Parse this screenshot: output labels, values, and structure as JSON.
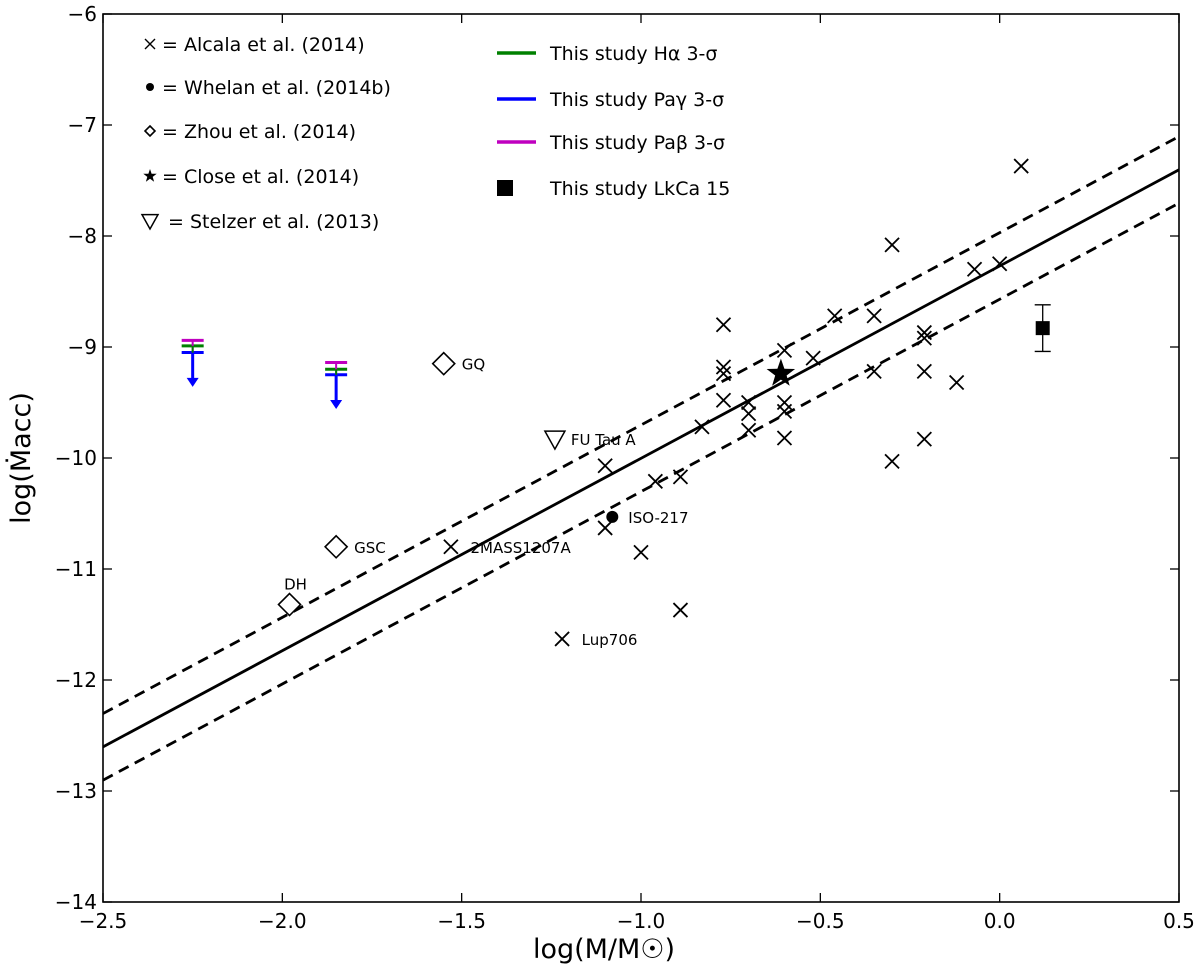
{
  "chart_data": {
    "type": "scatter",
    "xlabel": "log(M/M☉)",
    "ylabel": "log(Ṁacc)",
    "xlim": [
      -2.5,
      0.5
    ],
    "ylim": [
      -14,
      -6
    ],
    "xticks": [
      -2.5,
      -2.0,
      -1.5,
      -1.0,
      -0.5,
      0.0,
      0.5
    ],
    "xtick_labels": [
      "−2.5",
      "−2.0",
      "−1.5",
      "−1.0",
      "−0.5",
      "0.0",
      "0.5"
    ],
    "yticks": [
      -14,
      -13,
      -12,
      -11,
      -10,
      -9,
      -8,
      -7,
      -6
    ],
    "ytick_labels": [
      "−14",
      "−13",
      "−12",
      "−11",
      "−10",
      "−9",
      "−8",
      "−7",
      "−6"
    ],
    "grid": false,
    "legend_left": [
      {
        "marker": "x",
        "label": "= Alcala et al. (2014)"
      },
      {
        "marker": "circle",
        "label": "= Whelan et al. (2014b)"
      },
      {
        "marker": "diamond",
        "label": "= Zhou et al. (2014)"
      },
      {
        "marker": "star",
        "label": "= Close et al. (2014)"
      },
      {
        "marker": "triangle",
        "label": "= Stelzer et al. (2013)"
      }
    ],
    "legend_right": [
      {
        "marker": "line",
        "color": "#008000",
        "label": "This study Hα 3-σ"
      },
      {
        "marker": "line",
        "color": "#0000ff",
        "label": "This study Paγ 3-σ"
      },
      {
        "marker": "line",
        "color": "#bf00bf",
        "label": "This study Paβ 3-σ"
      },
      {
        "marker": "square",
        "label": "This study LkCa 15"
      }
    ],
    "fit_line": {
      "slope": 1.733,
      "intercept": -8.27,
      "offset": 0.3
    },
    "alcala_points": [
      [
        -0.77,
        -8.8
      ],
      [
        -0.77,
        -9.18
      ],
      [
        -0.77,
        -9.24
      ],
      [
        -0.77,
        -9.48
      ],
      [
        -0.7,
        -9.5
      ],
      [
        -0.7,
        -9.6
      ],
      [
        -0.7,
        -9.75
      ],
      [
        -0.6,
        -9.03
      ],
      [
        -0.6,
        -9.5
      ],
      [
        -0.6,
        -9.58
      ],
      [
        -0.6,
        -9.82
      ],
      [
        -0.52,
        -9.1
      ],
      [
        -0.46,
        -8.72
      ],
      [
        -0.35,
        -8.72
      ],
      [
        -0.35,
        -9.22
      ],
      [
        -0.3,
        -8.08
      ],
      [
        -0.3,
        -10.03
      ],
      [
        -0.21,
        -8.87
      ],
      [
        -0.21,
        -8.92
      ],
      [
        -0.21,
        -9.22
      ],
      [
        -0.21,
        -9.83
      ],
      [
        -0.12,
        -9.32
      ],
      [
        -0.07,
        -8.3
      ],
      [
        0.0,
        -8.25
      ],
      [
        0.06,
        -7.37
      ],
      [
        -0.83,
        -9.72
      ],
      [
        -0.96,
        -10.21
      ],
      [
        -0.89,
        -10.17
      ],
      [
        -1.1,
        -10.07
      ],
      [
        -1.1,
        -10.63
      ],
      [
        -1.0,
        -10.85
      ],
      [
        -0.89,
        -11.37
      ],
      [
        -1.53,
        -10.8
      ],
      [
        -1.22,
        -11.63
      ]
    ],
    "whelan_points": [
      {
        "x": -1.08,
        "y": -10.53
      }
    ],
    "zhou_points": [
      {
        "x": -1.55,
        "y": -9.15,
        "label": "GQ"
      },
      {
        "x": -1.85,
        "y": -10.8,
        "label": "GSC"
      },
      {
        "x": -1.98,
        "y": -11.32,
        "label": "DH"
      }
    ],
    "close_points": [
      {
        "x": -0.61,
        "y": -9.24
      }
    ],
    "stelzer_points": [
      {
        "x": -1.24,
        "y": -9.83
      }
    ],
    "text_labels": [
      {
        "x": -1.52,
        "y": -10.8,
        "label": "2MASS1207A"
      },
      {
        "x": -1.21,
        "y": -11.63,
        "label": "Lup706"
      },
      {
        "x": -1.24,
        "y": -9.83,
        "label": "FU Tau A"
      },
      {
        "x": -1.08,
        "y": -10.53,
        "label": "ISO-217"
      }
    ],
    "upper_limits": [
      {
        "x": -2.25,
        "ha": -8.99,
        "pag": -9.05,
        "pab": -8.94
      },
      {
        "x": -1.85,
        "ha": -9.2,
        "pag": -9.25,
        "pab": -9.14
      }
    ],
    "lkca15": {
      "x": 0.12,
      "y": -8.83,
      "err_low": 0.21,
      "err_high": 0.21
    },
    "colors": {
      "halpha": "#008000",
      "pagamma": "#0000ff",
      "pabeta": "#bf00bf",
      "ink": "#000000"
    }
  }
}
